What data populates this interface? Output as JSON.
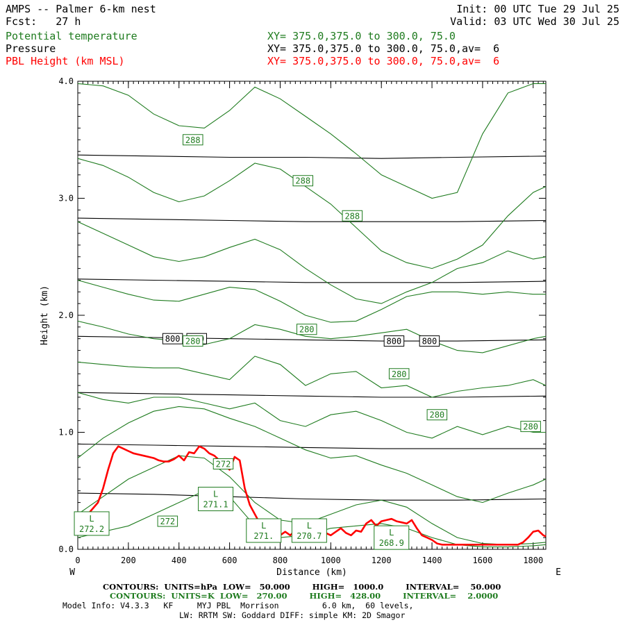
{
  "header": {
    "title": "AMPS -- Palmer 6-km nest",
    "fcst": "Fcst:   27 h",
    "init": "Init: 00 UTC Tue 29 Jul 25",
    "valid": "Valid: 03 UTC Wed 30 Jul 25",
    "field1": "Potential temperature",
    "field1_xy": "XY= 375.0,375.0 to 300.0, 75.0",
    "field2": "Pressure",
    "field2_xy": "XY= 375.0,375.0 to 300.0, 75.0,av=  6",
    "field3": "PBL Height (km MSL)",
    "field3_xy": "XY= 375.0,375.0 to 300.0, 75.0,av=  6"
  },
  "footer": {
    "line1": "CONTOURS:  UNITS=hPa  LOW=   50.000        HIGH=   1000.0        INTERVAL=    50.000",
    "line2": "CONTOURS:  UNITS=K  LOW=   270.00        HIGH=   428.00        INTERVAL=    2.0000",
    "line3": "Model Info: V4.3.3   KF     MYJ PBL  Morrison         6.0 km,  60 levels,",
    "line4": "LW: RRTM SW: Goddard DIFF: simple KM: 2D Smagor"
  },
  "colors": {
    "theta": "#1e7b1e",
    "pressure": "#000000",
    "pbl": "#ff0000"
  },
  "chart_data": {
    "type": "line",
    "xlabel": "Distance (km)",
    "ylabel": "Height (km)",
    "xlim": [
      0,
      1850
    ],
    "ylim": [
      0,
      4
    ],
    "x_ticks": [
      "0",
      "200",
      "400",
      "600",
      "800",
      "1000",
      "1200",
      "1400",
      "1600",
      "1800"
    ],
    "x_tick_values": [
      0,
      200,
      400,
      600,
      800,
      1000,
      1200,
      1400,
      1600,
      1800
    ],
    "y_ticks": [
      "0.0",
      "1.0",
      "2.0",
      "3.0",
      "4.0"
    ],
    "y_tick_values": [
      0,
      1,
      2,
      3,
      4
    ],
    "left_end": "W",
    "right_end": "E",
    "terrain": [
      [
        0,
        0
      ],
      [
        1850,
        0
      ]
    ],
    "pressure_series": [
      {
        "x": [
          0,
          300,
          600,
          900,
          1200,
          1500,
          1850
        ],
        "y": [
          0.48,
          0.47,
          0.45,
          0.43,
          0.42,
          0.42,
          0.43
        ]
      },
      {
        "x": [
          0,
          300,
          600,
          900,
          1200,
          1500,
          1850
        ],
        "y": [
          0.9,
          0.89,
          0.88,
          0.87,
          0.86,
          0.86,
          0.86
        ]
      },
      {
        "x": [
          0,
          300,
          600,
          900,
          1200,
          1500,
          1850
        ],
        "y": [
          1.34,
          1.33,
          1.32,
          1.31,
          1.3,
          1.3,
          1.31
        ]
      },
      {
        "x": [
          0,
          300,
          600,
          900,
          1200,
          1500,
          1850
        ],
        "y": [
          1.82,
          1.81,
          1.8,
          1.79,
          1.78,
          1.78,
          1.79
        ]
      },
      {
        "x": [
          0,
          300,
          600,
          900,
          1200,
          1500,
          1850
        ],
        "y": [
          2.31,
          2.3,
          2.29,
          2.28,
          2.28,
          2.28,
          2.29
        ]
      },
      {
        "x": [
          0,
          300,
          600,
          900,
          1200,
          1500,
          1850
        ],
        "y": [
          2.83,
          2.82,
          2.81,
          2.8,
          2.8,
          2.8,
          2.81
        ]
      },
      {
        "x": [
          0,
          300,
          600,
          900,
          1200,
          1500,
          1850
        ],
        "y": [
          3.37,
          3.36,
          3.35,
          3.35,
          3.34,
          3.35,
          3.36
        ]
      }
    ],
    "pressure_labels": [
      {
        "text": "800",
        "x": 375,
        "y": 1.8
      },
      {
        "text": "800",
        "x": 470,
        "y": 1.8
      },
      {
        "text": "800",
        "x": 1250,
        "y": 1.78
      },
      {
        "text": "800",
        "x": 1390,
        "y": 1.78
      }
    ],
    "theta_series": [
      {
        "x": [
          0,
          100,
          200,
          300,
          400,
          500,
          600,
          700,
          800,
          900,
          1000,
          1100,
          1200,
          1300,
          1400,
          1500,
          1600,
          1700,
          1800,
          1850
        ],
        "y": [
          3.98,
          3.96,
          3.88,
          3.72,
          3.62,
          3.6,
          3.75,
          3.95,
          3.85,
          3.7,
          3.55,
          3.38,
          3.2,
          3.1,
          3.0,
          3.05,
          3.55,
          3.9,
          3.98,
          3.98
        ]
      },
      {
        "x": [
          0,
          100,
          200,
          300,
          400,
          500,
          600,
          700,
          800,
          900,
          1000,
          1100,
          1200,
          1300,
          1400,
          1500,
          1600,
          1700,
          1800,
          1850
        ],
        "y": [
          3.34,
          3.28,
          3.18,
          3.05,
          2.97,
          3.02,
          3.15,
          3.3,
          3.25,
          3.1,
          2.95,
          2.75,
          2.55,
          2.45,
          2.4,
          2.48,
          2.6,
          2.85,
          3.05,
          3.1
        ]
      },
      {
        "x": [
          0,
          100,
          200,
          300,
          400,
          500,
          600,
          700,
          800,
          900,
          1000,
          1100,
          1200,
          1300,
          1400,
          1500,
          1600,
          1700,
          1800,
          1850
        ],
        "y": [
          2.8,
          2.7,
          2.6,
          2.5,
          2.46,
          2.5,
          2.58,
          2.65,
          2.56,
          2.4,
          2.26,
          2.14,
          2.1,
          2.2,
          2.28,
          2.4,
          2.45,
          2.55,
          2.48,
          2.5
        ]
      },
      {
        "x": [
          0,
          100,
          200,
          300,
          400,
          500,
          600,
          700,
          800,
          900,
          1000,
          1100,
          1200,
          1300,
          1400,
          1500,
          1600,
          1700,
          1800,
          1850
        ],
        "y": [
          2.3,
          2.24,
          2.18,
          2.13,
          2.12,
          2.18,
          2.24,
          2.22,
          2.12,
          2.0,
          1.94,
          1.95,
          2.05,
          2.16,
          2.2,
          2.2,
          2.18,
          2.2,
          2.18,
          2.18
        ]
      },
      {
        "x": [
          0,
          100,
          200,
          300,
          400,
          500,
          600,
          700,
          800,
          900,
          1000,
          1100,
          1200,
          1300,
          1400,
          1500,
          1600,
          1700,
          1800,
          1850
        ],
        "y": [
          1.95,
          1.9,
          1.84,
          1.8,
          1.78,
          1.75,
          1.8,
          1.92,
          1.88,
          1.82,
          1.8,
          1.82,
          1.85,
          1.88,
          1.78,
          1.7,
          1.68,
          1.74,
          1.8,
          1.82
        ]
      },
      {
        "x": [
          0,
          100,
          200,
          300,
          400,
          500,
          600,
          700,
          800,
          900,
          1000,
          1100,
          1200,
          1300,
          1400,
          1500,
          1600,
          1700,
          1800,
          1850
        ],
        "y": [
          1.6,
          1.58,
          1.56,
          1.55,
          1.55,
          1.5,
          1.45,
          1.65,
          1.58,
          1.4,
          1.5,
          1.52,
          1.38,
          1.4,
          1.3,
          1.35,
          1.38,
          1.4,
          1.45,
          1.4
        ]
      },
      {
        "x": [
          0,
          100,
          200,
          300,
          400,
          500,
          600,
          700,
          800,
          900,
          1000,
          1100,
          1200,
          1300,
          1400,
          1500,
          1600,
          1700,
          1800,
          1850
        ],
        "y": [
          1.34,
          1.28,
          1.25,
          1.3,
          1.3,
          1.25,
          1.2,
          1.25,
          1.1,
          1.05,
          1.15,
          1.18,
          1.1,
          1.0,
          0.95,
          1.05,
          0.98,
          1.05,
          1.0,
          1.0
        ]
      },
      {
        "x": [
          0,
          100,
          200,
          300,
          400,
          500,
          600,
          700,
          800,
          900,
          1000,
          1100,
          1200,
          1300,
          1400,
          1500,
          1600,
          1700,
          1800,
          1850
        ],
        "y": [
          0.78,
          0.95,
          1.08,
          1.18,
          1.22,
          1.2,
          1.12,
          1.05,
          0.95,
          0.85,
          0.78,
          0.8,
          0.72,
          0.65,
          0.55,
          0.45,
          0.4,
          0.48,
          0.55,
          0.6
        ]
      },
      {
        "x": [
          0,
          100,
          200,
          300,
          400,
          500,
          600,
          700,
          800,
          900,
          1000,
          1100,
          1200,
          1300,
          1400,
          1500,
          1600,
          1700,
          1800,
          1850
        ],
        "y": [
          0.3,
          0.45,
          0.6,
          0.7,
          0.8,
          0.78,
          0.62,
          0.4,
          0.25,
          0.22,
          0.3,
          0.38,
          0.42,
          0.36,
          0.22,
          0.1,
          0.05,
          0.04,
          0.05,
          0.06
        ]
      },
      {
        "x": [
          0,
          100,
          200,
          300,
          400,
          500,
          600,
          700,
          800,
          900,
          1000,
          1100,
          1200,
          1300,
          1400,
          1500,
          1600,
          1700,
          1800,
          1850
        ],
        "y": [
          0.1,
          0.15,
          0.2,
          0.3,
          0.4,
          0.5,
          0.45,
          0.2,
          0.1,
          0.12,
          0.18,
          0.2,
          0.22,
          0.18,
          0.1,
          0.04,
          0.02,
          0.02,
          0.03,
          0.04
        ]
      }
    ],
    "theta_labels": [
      {
        "text": "288",
        "x": 455,
        "y": 3.5
      },
      {
        "text": "288",
        "x": 890,
        "y": 3.15
      },
      {
        "text": "288",
        "x": 1085,
        "y": 2.85
      },
      {
        "text": "280",
        "x": 905,
        "y": 1.88
      },
      {
        "text": "280",
        "x": 1270,
        "y": 1.5
      },
      {
        "text": "280",
        "x": 1420,
        "y": 1.15
      },
      {
        "text": "280",
        "x": 1790,
        "y": 1.05
      },
      {
        "text": "280",
        "x": 455,
        "y": 1.78
      },
      {
        "text": "272",
        "x": 575,
        "y": 0.73
      },
      {
        "text": "272",
        "x": 355,
        "y": 0.24
      }
    ],
    "theta_lows": [
      {
        "text": "L",
        "value": "272.2",
        "x": 55,
        "y": 0.22
      },
      {
        "text": "L",
        "value": "271.1",
        "x": 545,
        "y": 0.43
      },
      {
        "text": "L",
        "value": "271.",
        "x": 735,
        "y": 0.16
      },
      {
        "text": "L",
        "value": "270.7",
        "x": 915,
        "y": 0.16
      },
      {
        "text": "L",
        "value": "268.9",
        "x": 1240,
        "y": 0.1
      }
    ],
    "pbl_series": {
      "name": "PBL Height (km MSL)",
      "x": [
        0,
        20,
        40,
        60,
        80,
        100,
        120,
        140,
        160,
        180,
        200,
        220,
        240,
        260,
        280,
        300,
        320,
        340,
        360,
        380,
        400,
        420,
        440,
        460,
        480,
        500,
        520,
        540,
        560,
        580,
        600,
        620,
        640,
        660,
        680,
        700,
        720,
        740,
        760,
        780,
        800,
        820,
        840,
        860,
        880,
        900,
        920,
        940,
        960,
        980,
        1000,
        1020,
        1040,
        1060,
        1080,
        1100,
        1120,
        1140,
        1160,
        1180,
        1200,
        1220,
        1240,
        1260,
        1280,
        1300,
        1320,
        1340,
        1360,
        1380,
        1400,
        1420,
        1440,
        1460,
        1480,
        1500,
        1520,
        1540,
        1560,
        1580,
        1600,
        1620,
        1640,
        1660,
        1680,
        1700,
        1720,
        1740,
        1760,
        1780,
        1800,
        1820,
        1840,
        1850
      ],
      "y": [
        0.25,
        0.27,
        0.3,
        0.35,
        0.4,
        0.52,
        0.68,
        0.82,
        0.88,
        0.86,
        0.84,
        0.82,
        0.81,
        0.8,
        0.79,
        0.78,
        0.76,
        0.75,
        0.75,
        0.77,
        0.8,
        0.76,
        0.83,
        0.82,
        0.88,
        0.86,
        0.82,
        0.8,
        0.76,
        0.72,
        0.68,
        0.79,
        0.76,
        0.52,
        0.38,
        0.3,
        0.22,
        0.18,
        0.14,
        0.1,
        0.12,
        0.15,
        0.12,
        0.16,
        0.14,
        0.18,
        0.15,
        0.12,
        0.16,
        0.14,
        0.12,
        0.15,
        0.18,
        0.14,
        0.12,
        0.16,
        0.15,
        0.22,
        0.25,
        0.2,
        0.24,
        0.25,
        0.26,
        0.24,
        0.23,
        0.22,
        0.25,
        0.18,
        0.12,
        0.1,
        0.08,
        0.05,
        0.04,
        0.04,
        0.04,
        0.04,
        0.04,
        0.04,
        0.04,
        0.04,
        0.04,
        0.04,
        0.04,
        0.04,
        0.04,
        0.04,
        0.04,
        0.04,
        0.06,
        0.1,
        0.15,
        0.16,
        0.12,
        0.11
      ]
    }
  }
}
